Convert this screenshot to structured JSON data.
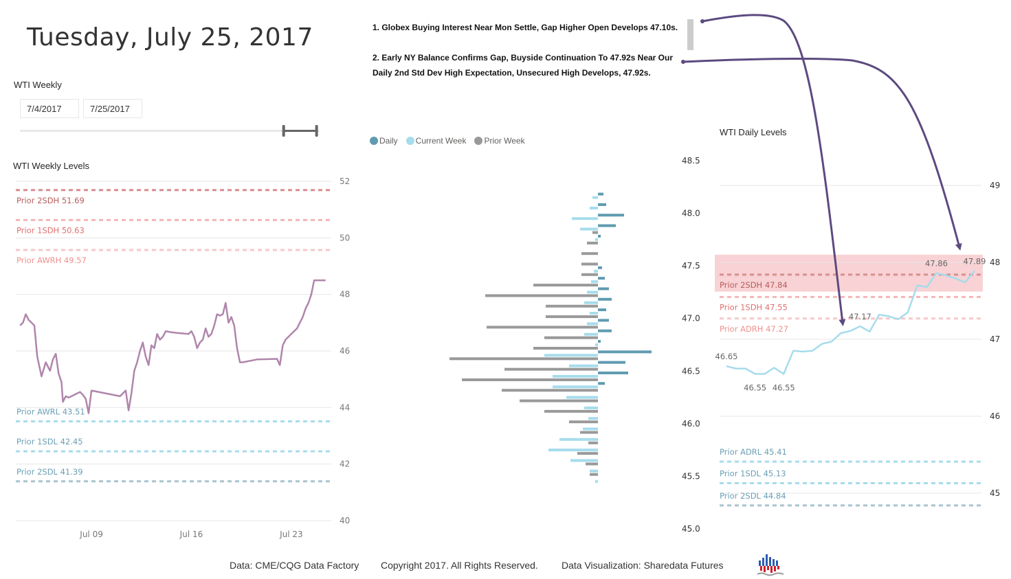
{
  "header": {
    "title": "Tuesday, July 25, 2017"
  },
  "slicer": {
    "label": "WTI Weekly",
    "start_date": "7/4/2017",
    "end_date": "7/25/2017",
    "range_selected": [
      0.88,
      0.99
    ]
  },
  "notes": {
    "note1": "1. Globex Buying Interest Near Mon Settle, Gap Higher Open Develops 47.10s.",
    "note2_line1": "2. Early NY Balance Confirms Gap, Buyside Continuation To 47.92s Near Our",
    "note2_line2": "Daily 2nd Std Dev High Expectation, Unsecured High Develops,  47.92s."
  },
  "colors": {
    "weekly_line": "#b085ab",
    "daily_line": "#a6dcec",
    "daily_bar": "#5f9bb0",
    "current_week_bar": "#a6dcec",
    "prior_week_bar": "#999999",
    "high_level_dark": "#d98e8e",
    "high_level_light": "#f4b6b6",
    "low_level_light": "#a6dcec",
    "low_level_dark": "#a8c4d0",
    "annotation_arrow": "#5c4a80",
    "highlight_band": "#f8d2d4"
  },
  "footer": {
    "data_source": "Data: CME/CQG Data Factory",
    "copyright": "Copyright 2017. All Rights Reserved.",
    "visualization": "Data Visualization: Sharedata Futures",
    "logo_icon": "sharedata-bars-logo"
  },
  "chart_data": [
    {
      "id": "weekly",
      "type": "line",
      "title": "WTI Weekly Levels",
      "xlabel": "",
      "ylabel": "",
      "ylim": [
        40,
        52
      ],
      "yticks": [
        40,
        42,
        44,
        46,
        48,
        50,
        52
      ],
      "xticks": [
        "Jul 09",
        "Jul 16",
        "Jul 23"
      ],
      "xtick_positions_day": [
        9,
        16,
        23
      ],
      "xlim_day": [
        3.7,
        25.8
      ],
      "grid": true,
      "series": [
        {
          "name": "WTI",
          "x_day": [
            4.0,
            4.2,
            4.4,
            4.6,
            4.8,
            5.0,
            5.2,
            5.5,
            5.8,
            6.1,
            6.3,
            6.5,
            6.7,
            6.9,
            7.0,
            7.2,
            7.4,
            7.6,
            7.8,
            8.0,
            8.2,
            8.4,
            8.6,
            8.8,
            9.0,
            11.0,
            11.2,
            11.4,
            11.6,
            11.8,
            12.0,
            12.2,
            12.4,
            12.6,
            12.8,
            13.0,
            13.2,
            13.4,
            13.6,
            13.8,
            14.0,
            14.2,
            14.4,
            14.6,
            14.8,
            15.0,
            15.2,
            15.4,
            15.6,
            15.8,
            16.0,
            16.2,
            16.4,
            16.6,
            16.8,
            17.0,
            17.2,
            17.4,
            17.6,
            17.8,
            18.0,
            18.2,
            18.4,
            18.6,
            18.8,
            19.0,
            19.2,
            19.4,
            19.6,
            19.8,
            20.0,
            20.2,
            20.4,
            20.6,
            22.0,
            22.2,
            22.4,
            22.6,
            22.8,
            23.0,
            23.2,
            23.4,
            23.6,
            23.8,
            24.0,
            24.2,
            24.4,
            24.6,
            24.8,
            25.0,
            25.2,
            25.4
          ],
          "values": [
            46.9,
            47.0,
            47.3,
            47.1,
            47.0,
            46.9,
            45.8,
            45.1,
            45.6,
            45.3,
            45.7,
            45.9,
            45.2,
            44.9,
            44.2,
            44.4,
            44.35,
            44.4,
            44.45,
            44.5,
            44.55,
            44.45,
            44.3,
            43.8,
            44.6,
            44.4,
            44.5,
            44.6,
            43.9,
            44.5,
            45.3,
            45.6,
            46.0,
            46.3,
            45.8,
            45.5,
            46.2,
            46.1,
            46.6,
            46.4,
            46.5,
            46.7,
            46.68,
            46.66,
            46.65,
            46.64,
            46.63,
            46.62,
            46.61,
            46.6,
            46.7,
            46.5,
            46.1,
            46.3,
            46.4,
            46.8,
            46.5,
            46.6,
            46.9,
            47.3,
            47.25,
            47.3,
            47.7,
            47.0,
            47.2,
            46.9,
            46.1,
            45.6,
            45.6,
            45.62,
            45.64,
            45.66,
            45.68,
            45.7,
            45.72,
            45.5,
            46.2,
            46.4,
            46.5,
            46.6,
            46.7,
            46.8,
            47.0,
            47.2,
            47.5,
            47.7,
            48.0,
            48.5,
            48.5,
            48.5,
            48.5,
            48.5
          ]
        }
      ],
      "levels": [
        {
          "label": "Prior 2SDH",
          "value": 51.69,
          "style": "high_dark"
        },
        {
          "label": "Prior 1SDH",
          "value": 50.63,
          "style": "high_light"
        },
        {
          "label": "Prior AWRH",
          "value": 49.57,
          "style": "high_lighter"
        },
        {
          "label": "Prior AWRL",
          "value": 43.51,
          "style": "low_light"
        },
        {
          "label": "Prior 1SDL",
          "value": 42.45,
          "style": "low_light"
        },
        {
          "label": "Prior 2SDL",
          "value": 41.39,
          "style": "low_dark"
        }
      ]
    },
    {
      "id": "profile",
      "type": "bar",
      "orientation": "horizontal",
      "title": "",
      "legend": [
        "Daily",
        "Current Week",
        "Prior Week"
      ],
      "legend_position": "top-left",
      "ylim": [
        45.0,
        48.5
      ],
      "yticks": [
        "45.0",
        "45.5",
        "46.0",
        "46.5",
        "47.0",
        "47.5",
        "48.0",
        "48.5"
      ],
      "price_levels": [
        48.15,
        48.05,
        47.95,
        47.85,
        47.75,
        47.65,
        47.55,
        47.45,
        47.35,
        47.25,
        47.15,
        47.05,
        46.95,
        46.85,
        46.75,
        46.65,
        46.55,
        46.45,
        46.35,
        46.25,
        46.15,
        46.05,
        45.95,
        45.85,
        45.75,
        45.65,
        45.55,
        45.45
      ],
      "series": [
        {
          "name": "Daily",
          "direction": "right",
          "values": [
            8,
            12,
            38,
            26,
            4,
            0,
            0,
            6,
            10,
            16,
            20,
            12,
            16,
            20,
            4,
            78,
            40,
            44,
            10,
            0,
            0,
            0,
            0,
            0,
            0,
            0,
            0,
            0
          ]
        },
        {
          "name": "Current Week",
          "direction": "left",
          "values": [
            8,
            12,
            38,
            26,
            4,
            0,
            0,
            6,
            10,
            16,
            20,
            12,
            16,
            20,
            4,
            78,
            42,
            66,
            66,
            46,
            20,
            14,
            22,
            56,
            72,
            40,
            12,
            4
          ]
        },
        {
          "name": "Prior Week",
          "direction": "left",
          "values": [
            0,
            0,
            0,
            8,
            16,
            24,
            24,
            24,
            94,
            164,
            76,
            76,
            162,
            78,
            94,
            216,
            136,
            198,
            140,
            114,
            78,
            42,
            26,
            14,
            30,
            18,
            12,
            0
          ]
        }
      ]
    },
    {
      "id": "daily",
      "type": "line",
      "title": "WTI Daily Levels",
      "ylim": [
        44.6,
        49.3
      ],
      "yticks": [
        45,
        46,
        47,
        48,
        49
      ],
      "grid": true,
      "highlight_band": [
        47.62,
        48.1
      ],
      "series": [
        {
          "name": "WTI",
          "values": [
            46.65,
            46.62,
            46.62,
            46.55,
            46.55,
            46.63,
            46.55,
            46.85,
            46.84,
            46.85,
            46.94,
            46.97,
            47.08,
            47.11,
            47.17,
            47.1,
            47.32,
            47.3,
            47.26,
            47.35,
            47.7,
            47.68,
            47.86,
            47.83,
            47.79,
            47.74,
            47.89
          ]
        }
      ],
      "data_labels": [
        {
          "index": 0,
          "text": "46.65"
        },
        {
          "index": 3,
          "text": "46.55"
        },
        {
          "index": 6,
          "text": "46.55"
        },
        {
          "index": 14,
          "text": "47.17"
        },
        {
          "index": 22,
          "text": "47.86"
        },
        {
          "index": 26,
          "text": "47.89"
        }
      ],
      "levels": [
        {
          "label": "Prior 2SDH",
          "value": 47.84,
          "style": "high_dark"
        },
        {
          "label": "Prior 1SDH",
          "value": 47.55,
          "style": "high_light"
        },
        {
          "label": "Prior ADRH",
          "value": 47.27,
          "style": "high_lighter"
        },
        {
          "label": "Prior ADRL",
          "value": 45.41,
          "style": "low_light"
        },
        {
          "label": "Prior 1SDL",
          "value": 45.13,
          "style": "low_light"
        },
        {
          "label": "Prior 2SDL",
          "value": 44.84,
          "style": "low_dark"
        }
      ]
    }
  ]
}
